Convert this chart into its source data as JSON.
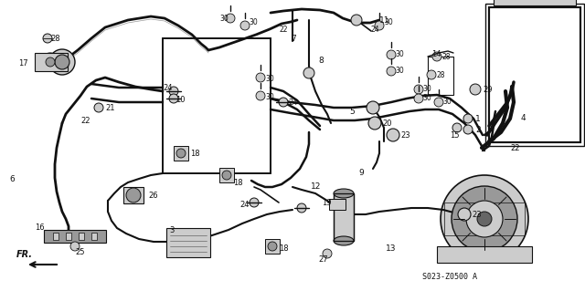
{
  "title": "",
  "background_color": "#c8c8c8",
  "diagram_code": "S023-Z0500 A",
  "figsize": [
    6.4,
    3.19
  ],
  "dpi": 100,
  "bg_gray": "#b8b8b8",
  "white": "#ffffff",
  "dark": "#1a1a1a",
  "mid_gray": "#888888",
  "light_gray": "#d0d0d0"
}
